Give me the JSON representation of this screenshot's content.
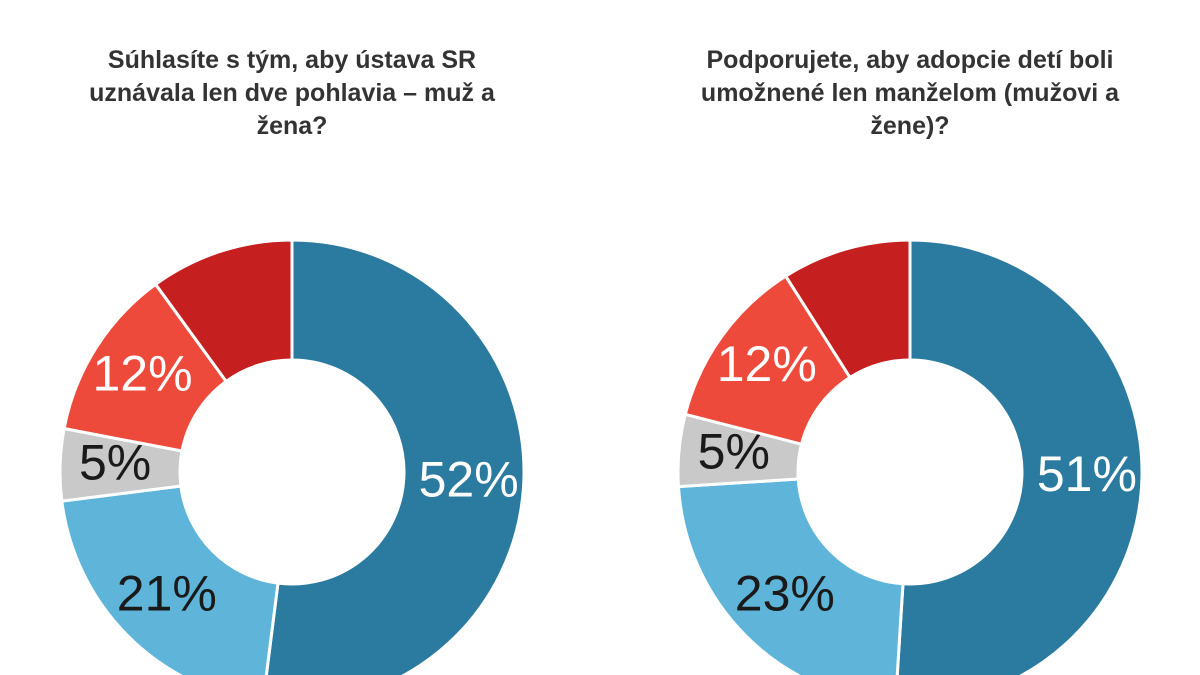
{
  "chart_data": [
    {
      "type": "donut",
      "title": [
        "Súhlasíte s tým, aby ústava SR",
        "uznávala len dve pohlavia – muž a",
        "žena?"
      ],
      "values": [
        52,
        21,
        5,
        12,
        10
      ],
      "value_labels": [
        "52%",
        "21%",
        "5%",
        "12%",
        null
      ],
      "colors": [
        "#2b7a9f",
        "#5fb4d9",
        "#c9c9c9",
        "#ee4a3b",
        "#c61f20"
      ],
      "label_colors": [
        "#ffffff",
        "#1a1a1a",
        "#1a1a1a",
        "#ffffff",
        "#ffffff"
      ]
    },
    {
      "type": "donut",
      "title": [
        "Podporujete, aby adopcie detí boli",
        "umožnené len manželom (mužovi a",
        "žene)?"
      ],
      "values": [
        51,
        23,
        5,
        12,
        9
      ],
      "value_labels": [
        "51%",
        "23%",
        "5%",
        "12%",
        null
      ],
      "colors": [
        "#2b7a9f",
        "#5fb4d9",
        "#c9c9c9",
        "#ee4a3b",
        "#c61f20"
      ],
      "label_colors": [
        "#ffffff",
        "#1a1a1a",
        "#1a1a1a",
        "#ffffff",
        "#ffffff"
      ]
    }
  ]
}
